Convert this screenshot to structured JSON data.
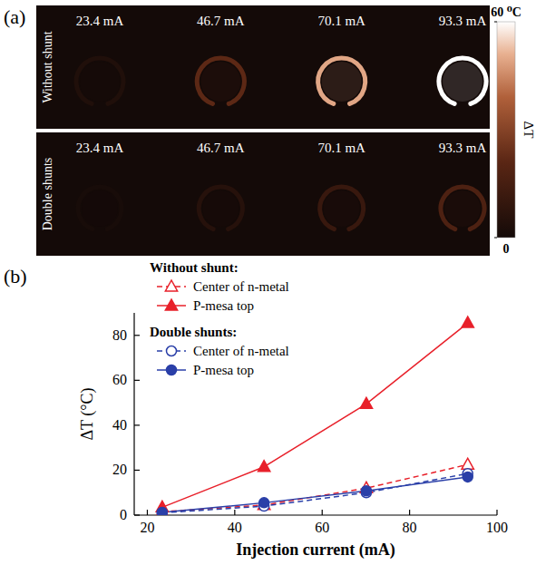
{
  "panel_a": {
    "label": "(a)",
    "row_labels": [
      "Without shunt",
      "Double shunts"
    ],
    "column_labels": [
      "23.4 mA",
      "46.7 mA",
      "70.1 mA",
      "93.3 mA"
    ],
    "colorbar": {
      "range": [
        0,
        60
      ],
      "ticks": [
        0,
        {
          "value": 60,
          "label": "60 ⁰C"
        }
      ],
      "title": "ΔT"
    }
  },
  "chart_data": {
    "type": "line",
    "panel_label": "(b)",
    "x_label": "Injection current (mA)",
    "y_label": "ΔT (°C)",
    "x": [
      23.4,
      46.7,
      70.1,
      93.3
    ],
    "series": [
      {
        "name": "Center of n-metal",
        "group": "Without shunt:",
        "color": "#e8202a",
        "marker": "triangle-open",
        "line_style": "dashed",
        "values": [
          1.5,
          4.5,
          12,
          22.5
        ]
      },
      {
        "name": "P-mesa top",
        "group": "Without shunt:",
        "color": "#e8202a",
        "marker": "triangle",
        "line_style": "solid",
        "values": [
          3.5,
          21.5,
          49.5,
          85.5
        ]
      },
      {
        "name": "Center of n-metal",
        "group": "Double shunts:",
        "color": "#2a3fa8",
        "marker": "circle-open",
        "line_style": "dashed",
        "values": [
          1,
          4,
          10,
          18.5
        ]
      },
      {
        "name": "P-mesa top",
        "group": "Double shunts:",
        "color": "#2a3fa8",
        "marker": "circle",
        "line_style": "solid",
        "values": [
          1.2,
          5.5,
          10.8,
          17
        ]
      }
    ],
    "xlim": [
      17,
      100
    ],
    "xticks": [
      20,
      40,
      60,
      80,
      100
    ],
    "ylim": [
      0,
      90
    ],
    "yticks": [
      0,
      20,
      40,
      60,
      80
    ],
    "grid": false,
    "legend": "upper left"
  }
}
